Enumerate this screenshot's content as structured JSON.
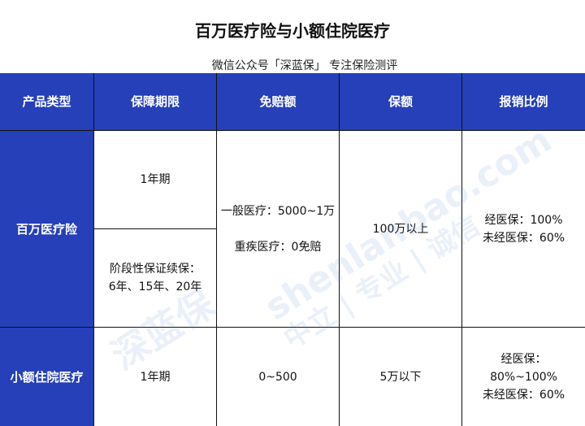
{
  "title": "百万医疗险与小额住院医疗",
  "subtitle": "微信公众号「深蓝保」 专注保险测评",
  "headers": [
    "产品类型",
    "保障期限",
    "免赔额",
    "保额",
    "报销比例"
  ],
  "rows": [
    {
      "type": "百万医疗险",
      "term": [
        "1年期",
        "阶段性保证续保：\n6年、15年、20年"
      ],
      "deductible": "一般医疗：5000~1万\n\n重疾医疗：0免赔",
      "amount": "100万以上",
      "ratio": "经医保：100%\n未经医保：60%"
    },
    {
      "type": "小额住院医疗",
      "term": [
        "1年期"
      ],
      "deductible": "0~500",
      "amount": "5万以下",
      "ratio": "经医保：\n80%~100%\n未经医保：60%"
    }
  ],
  "watermark": {
    "url": "shenlanbao.com",
    "slogan": "中立 | 专业 | 诚信",
    "logo": "深蓝保"
  },
  "colors": {
    "header": "#2540b8"
  }
}
